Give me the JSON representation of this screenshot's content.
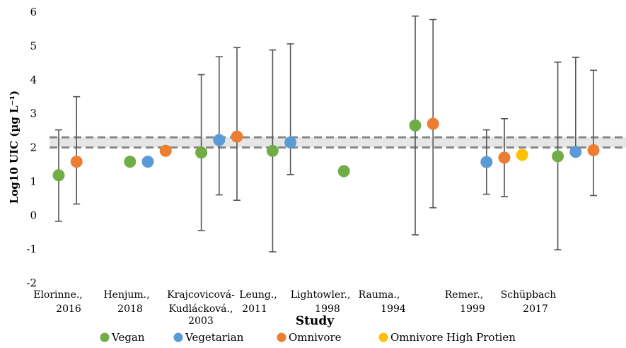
{
  "chart_data": {
    "type": "scatter",
    "title": "",
    "xlabel": "Study",
    "ylabel": "Log10 UIC (µg L⁻¹)",
    "ylim": [
      -2,
      6
    ],
    "yticks": [
      "-2",
      "-1",
      "0",
      "1",
      "2",
      "3",
      "4",
      "5",
      "6"
    ],
    "grid": false,
    "legend_position": "bottom",
    "reference_band": {
      "lower": 2.0,
      "upper": 2.3,
      "style": "dashed",
      "color": "#888888",
      "fill": "#e6e6e6"
    },
    "studies": [
      {
        "label_lines": [
          "Elorinne.,",
          "2016"
        ]
      },
      {
        "label_lines": [
          "Henjum.,",
          "2018"
        ]
      },
      {
        "label_lines": [
          "Krajcovicová-",
          "Kudlácková.,",
          "2003"
        ]
      },
      {
        "label_lines": [
          "Leung.,",
          "2011"
        ]
      },
      {
        "label_lines": [
          "Lightowler.,",
          "1998"
        ]
      },
      {
        "label_lines": [
          "Rauma.,",
          "1994"
        ]
      },
      {
        "label_lines": [
          "Remer.,",
          "1999"
        ]
      },
      {
        "label_lines": [
          "Schüpbach",
          "2017"
        ]
      }
    ],
    "series": [
      {
        "name": "Vegan",
        "color": "#70ad47"
      },
      {
        "name": "Vegetarian",
        "color": "#5b9bd5"
      },
      {
        "name": "Omnivore",
        "color": "#ed7d31"
      },
      {
        "name": "Omnivore High Protien",
        "color": "#ffc000"
      }
    ],
    "points": [
      {
        "study": "Elorinne., 2016",
        "series": "Vegan",
        "x": 1.0,
        "y": 1.18,
        "err_low": -0.18,
        "err_high": 2.52
      },
      {
        "study": "Elorinne., 2016",
        "series": "Omnivore",
        "x": 2.0,
        "y": 1.58,
        "err_low": 0.33,
        "err_high": 3.5
      },
      {
        "study": "Henjum., 2018",
        "series": "Vegan",
        "x": 5.0,
        "y": 1.58
      },
      {
        "study": "Henjum., 2018",
        "series": "Vegetarian",
        "x": 6.0,
        "y": 1.58
      },
      {
        "study": "Henjum., 2018",
        "series": "Omnivore",
        "x": 7.0,
        "y": 1.9
      },
      {
        "study": "Krajcovicová-Kudlácková., 2003",
        "series": "Vegan",
        "x": 9.0,
        "y": 1.85,
        "err_low": -0.45,
        "err_high": 4.15
      },
      {
        "study": "Krajcovicová-Kudlácková., 2003",
        "series": "Vegetarian",
        "x": 10.0,
        "y": 2.22,
        "err_low": 0.6,
        "err_high": 4.68
      },
      {
        "study": "Krajcovicová-Kudlácková., 2003",
        "series": "Omnivore",
        "x": 11.0,
        "y": 2.32,
        "err_low": 0.44,
        "err_high": 4.95
      },
      {
        "study": "Leung., 2011",
        "series": "Vegan",
        "x": 13.0,
        "y": 1.9,
        "err_low": -1.08,
        "err_high": 4.88
      },
      {
        "study": "Leung., 2011",
        "series": "Vegetarian",
        "x": 14.0,
        "y": 2.15,
        "err_low": 1.2,
        "err_high": 5.06
      },
      {
        "study": "Lightowler., 1998",
        "series": "Vegan",
        "x": 17.0,
        "y": 1.3
      },
      {
        "study": "Rauma., 1994",
        "series": "Vegan",
        "x": 21.0,
        "y": 2.65,
        "err_low": -0.58,
        "err_high": 5.88
      },
      {
        "study": "Rauma., 1994",
        "series": "Omnivore",
        "x": 22.0,
        "y": 2.7,
        "err_low": 0.22,
        "err_high": 5.78
      },
      {
        "study": "Remer., 1999",
        "series": "Vegetarian",
        "x": 25.0,
        "y": 1.57,
        "err_low": 0.62,
        "err_high": 2.52
      },
      {
        "study": "Remer., 1999",
        "series": "Omnivore",
        "x": 26.0,
        "y": 1.7,
        "err_low": 0.55,
        "err_high": 2.85
      },
      {
        "study": "Schüpbach 2017",
        "series": "Omnivore High Protien",
        "x": 27.0,
        "y": 1.78
      },
      {
        "study": "Schüpbach 2017",
        "series": "Vegan",
        "x": 29.0,
        "y": 1.74,
        "err_low": -1.02,
        "err_high": 4.52
      },
      {
        "study": "Schüpbach 2017",
        "series": "Vegetarian",
        "x": 30.0,
        "y": 1.87,
        "err_low": 1.87,
        "err_high": 4.66
      },
      {
        "study": "Schüpbach 2017",
        "series": "Omnivore",
        "x": 31.0,
        "y": 1.92,
        "err_low": 0.58,
        "err_high": 4.28
      }
    ]
  }
}
